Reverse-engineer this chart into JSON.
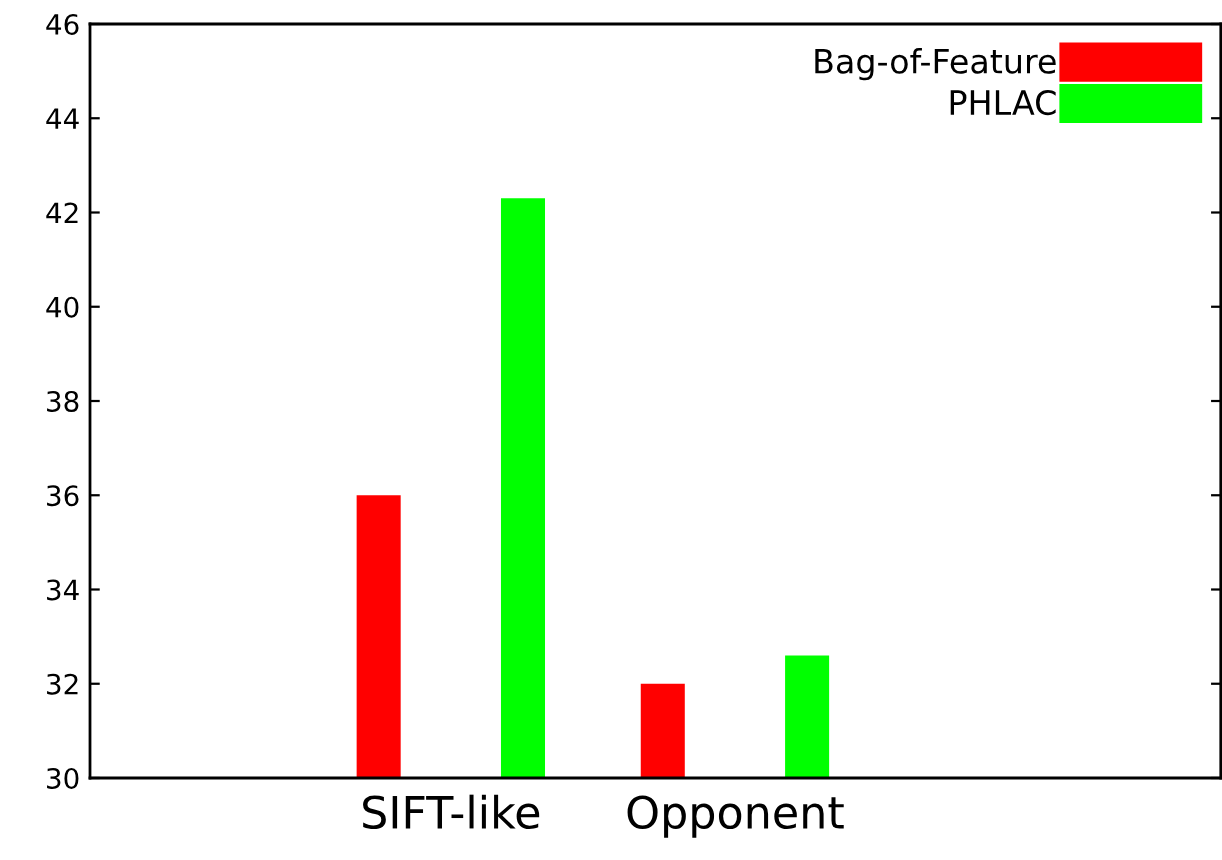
{
  "chart_data": {
    "type": "bar",
    "categories": [
      "SIFT-like",
      "Opponent"
    ],
    "series": [
      {
        "name": "Bag-of-Feature",
        "color": "#ff0000",
        "values": [
          36,
          32
        ]
      },
      {
        "name": "PHLAC",
        "color": "#00ff00",
        "values": [
          42.3,
          32.6
        ]
      }
    ],
    "ylim": [
      30,
      46
    ],
    "yticks": [
      30,
      32,
      34,
      36,
      38,
      40,
      42,
      44,
      46
    ],
    "grid": false,
    "legend": "top right"
  }
}
